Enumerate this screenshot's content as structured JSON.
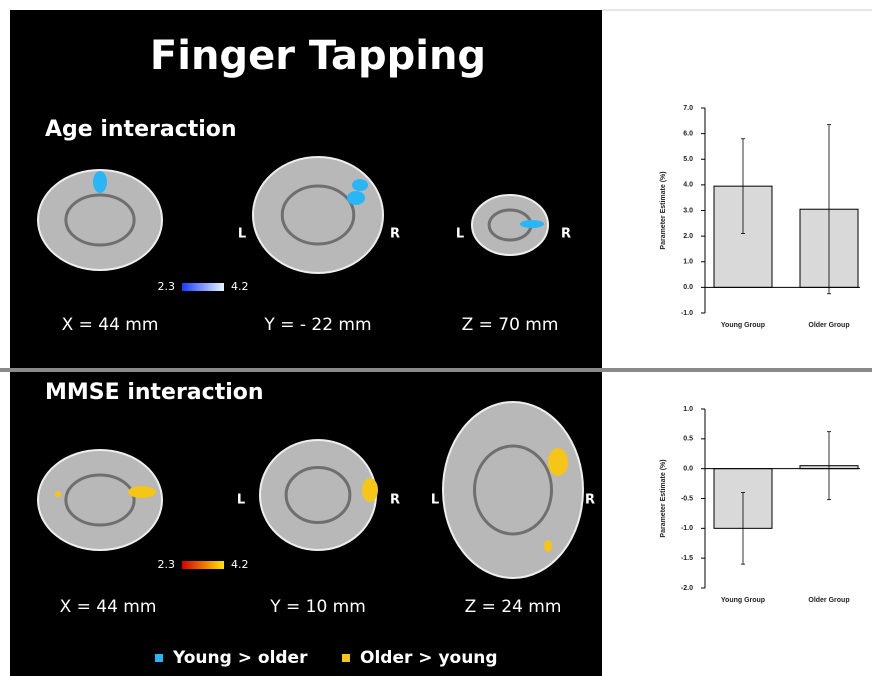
{
  "figure": {
    "title": "Finger Tapping",
    "panels": [
      {
        "heading": "Age interaction",
        "views": [
          {
            "label": "X = 44 mm"
          },
          {
            "label": "Y = - 22 mm",
            "left": "L",
            "right": "R"
          },
          {
            "label": "Z = 70 mm",
            "left": "L",
            "right": "R"
          }
        ],
        "colorbar": {
          "min": 2.3,
          "max": 4.2,
          "colors": [
            "#1a3cff",
            "#e8f4ff"
          ]
        }
      },
      {
        "heading": "MMSE interaction",
        "views": [
          {
            "label": "X = 44 mm"
          },
          {
            "label": "Y = 10 mm",
            "left": "L",
            "right": "R"
          },
          {
            "label": "Z = 24 mm",
            "left": "L",
            "right": "R"
          }
        ],
        "colorbar": {
          "min": 2.3,
          "max": 4.2,
          "colors": [
            "#d40000",
            "#ffe600"
          ]
        }
      }
    ],
    "legend": [
      {
        "label": "Young > older",
        "color": "#29b6f6"
      },
      {
        "label": "Older > young",
        "color": "#f5c518"
      }
    ]
  },
  "chart_data": [
    {
      "type": "bar",
      "ylabel": "Parameter Estimate (%)",
      "categories": [
        "Young Group",
        "Older Group"
      ],
      "values": [
        3.95,
        3.05
      ],
      "errors": [
        1.85,
        3.3
      ],
      "color": "#d9d9d9",
      "ylim": [
        -1,
        7
      ],
      "yticks": [
        {
          "value": -1,
          "label": "-1.0"
        },
        {
          "value": 0,
          "label": "0.0"
        },
        {
          "value": 1,
          "label": "1.0"
        },
        {
          "value": 2,
          "label": "2.0"
        },
        {
          "value": 3,
          "label": "3.0"
        },
        {
          "value": 4,
          "label": "4.0"
        },
        {
          "value": 5,
          "label": "5.0"
        },
        {
          "value": 6,
          "label": "6.0"
        },
        {
          "value": 7,
          "label": "7.0"
        }
      ]
    },
    {
      "type": "bar",
      "ylabel": "Parameter Estimate (%)",
      "categories": [
        "Young Group",
        "Older Group"
      ],
      "values": [
        -1.0,
        0.05
      ],
      "errors": [
        0.6,
        0.57
      ],
      "color": "#d9d9d9",
      "ylim": [
        -2,
        1
      ],
      "yticks": [
        {
          "value": -2,
          "label": "-2.0"
        },
        {
          "value": -1.5,
          "label": "-1.5"
        },
        {
          "value": -1,
          "label": "-1.0"
        },
        {
          "value": -0.5,
          "label": "-0.5"
        },
        {
          "value": 0,
          "label": "0.0"
        },
        {
          "value": 0.5,
          "label": "0.5"
        },
        {
          "value": 1,
          "label": "1.0"
        }
      ]
    }
  ]
}
